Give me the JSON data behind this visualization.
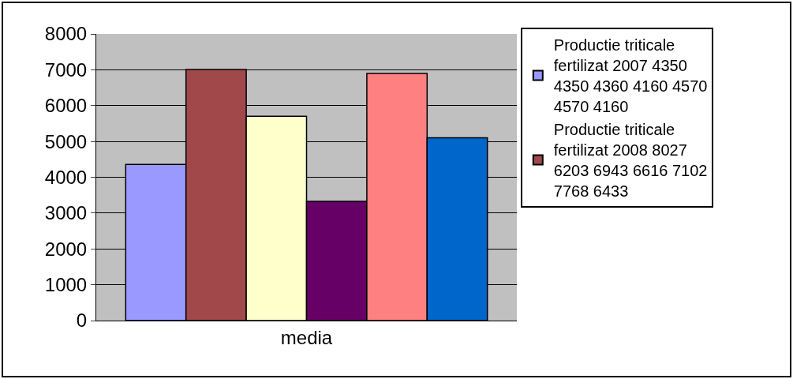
{
  "chart_data": {
    "type": "bar",
    "categories": [
      "media"
    ],
    "series": [
      {
        "name": "Productie triticale fertilizat 2007 4350 4350 4360 4160 4570 4570 4160",
        "color": "#9999ff",
        "values": [
          4360
        ]
      },
      {
        "name": "Productie triticale fertilizat 2008 8027 6203 6943 6616 7102 7768 6433",
        "color": "#a0484a",
        "values": [
          7010
        ]
      },
      {
        "color": "#ffffcc",
        "values": [
          5700
        ]
      },
      {
        "color": "#660066",
        "values": [
          3330
        ]
      },
      {
        "color": "#ff8080",
        "values": [
          6900
        ]
      },
      {
        "color": "#0066cc",
        "values": [
          5100
        ]
      }
    ],
    "ylim": [
      0,
      8000
    ],
    "yticks": [
      0,
      1000,
      2000,
      3000,
      4000,
      5000,
      6000,
      7000,
      8000
    ],
    "grid": "y",
    "legend": "top right"
  }
}
